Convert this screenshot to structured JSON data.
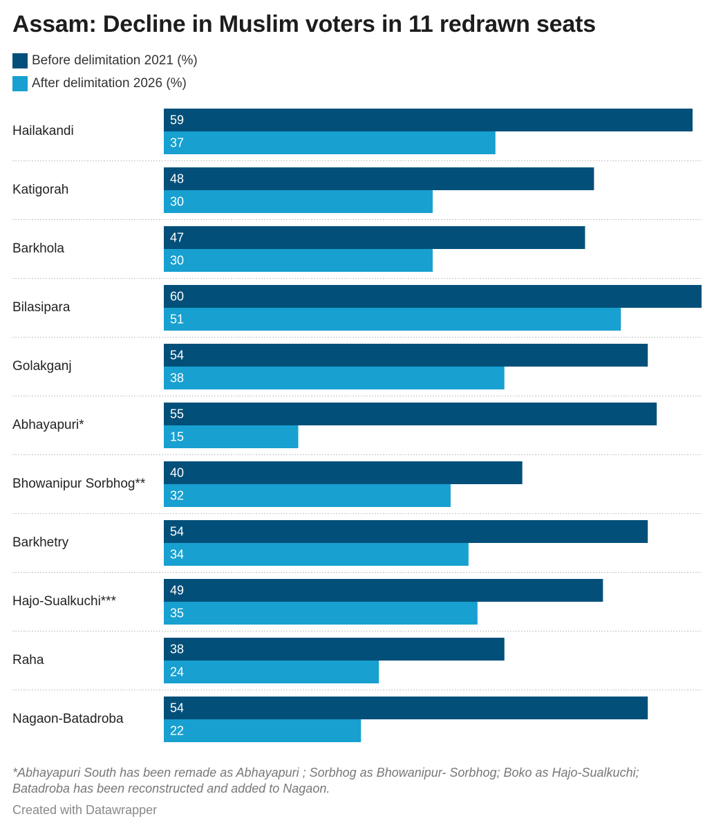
{
  "title": "Assam: Decline in Muslim voters in 11 redrawn seats",
  "colors": {
    "before": "#02507a",
    "after": "#17a0d0",
    "divider": "#c4c4c4",
    "bar_label": "#ffffff"
  },
  "legend": [
    {
      "label": "Before delimitation 2021 (%)",
      "color": "#02507a"
    },
    {
      "label": "After delimitation 2026 (%)",
      "color": "#17a0d0"
    }
  ],
  "chart_data": {
    "type": "bar",
    "orientation": "horizontal",
    "grouped": true,
    "categories": [
      "Hailakandi",
      "Katigorah",
      "Barkhola",
      "Bilasipara",
      "Golakganj",
      "Abhayapuri*",
      "Bhowanipur Sorbhog**",
      "Barkhetry",
      "Hajo-Sualkuchi***",
      "Raha",
      "Nagaon-Batadroba"
    ],
    "series": [
      {
        "name": "Before delimitation 2021 (%)",
        "values": [
          59,
          48,
          47,
          60,
          54,
          55,
          40,
          54,
          49,
          38,
          54
        ]
      },
      {
        "name": "After delimitation 2026 (%)",
        "values": [
          37,
          30,
          30,
          51,
          38,
          15,
          32,
          34,
          35,
          24,
          22
        ]
      }
    ],
    "xlim": [
      0,
      60
    ],
    "grid": false,
    "legend_position": "top-left",
    "value_labels": "inside-left"
  },
  "footnote": "*Abhayapuri South has been remade as Abhayapuri ; Sorbhog as Bhowanipur- Sorbhog; Boko as Hajo-Sualkuchi; Batadroba has been reconstructed and added to Nagaon.",
  "credit": "Created with Datawrapper"
}
